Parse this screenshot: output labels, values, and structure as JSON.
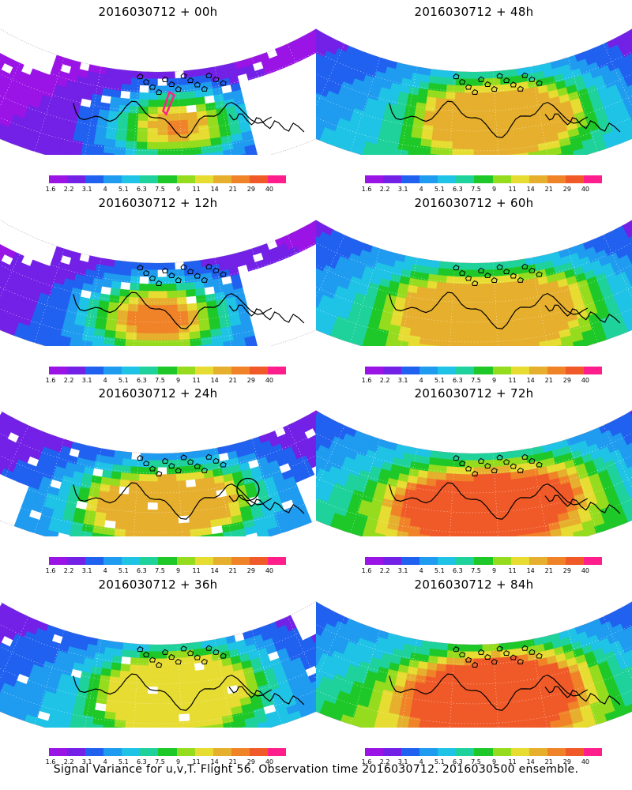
{
  "panels": [
    {
      "title": "2016030712 + 00h",
      "intensity": 0.15,
      "max_level": 0.95,
      "blobs": [
        [
          0.55,
          0.55,
          0.7
        ]
      ],
      "missing": "high",
      "marker": "diamond"
    },
    {
      "title": "2016030712 + 48h",
      "intensity": 0.55,
      "max_level": 0.7,
      "blobs": [
        [
          0.5,
          0.45,
          0.55
        ],
        [
          0.65,
          0.5,
          0.5
        ]
      ],
      "missing": "none"
    },
    {
      "title": "2016030712 + 12h",
      "intensity": 0.25,
      "max_level": 0.82,
      "blobs": [
        [
          0.5,
          0.55,
          0.75
        ]
      ],
      "missing": "high"
    },
    {
      "title": "2016030712 + 60h",
      "intensity": 0.65,
      "max_level": 0.75,
      "blobs": [
        [
          0.45,
          0.5,
          0.6
        ],
        [
          0.65,
          0.5,
          0.55
        ]
      ],
      "missing": "none"
    },
    {
      "title": "2016030712 + 24h",
      "intensity": 0.38,
      "max_level": 0.7,
      "blobs": [
        [
          0.45,
          0.55,
          0.6
        ],
        [
          0.6,
          0.5,
          0.55
        ]
      ],
      "missing": "medium",
      "marker": "circle"
    },
    {
      "title": "2016030712 + 72h",
      "intensity": 0.75,
      "max_level": 0.85,
      "blobs": [
        [
          0.45,
          0.55,
          0.7
        ],
        [
          0.65,
          0.5,
          0.6
        ]
      ],
      "missing": "none"
    },
    {
      "title": "2016030712 + 36h",
      "intensity": 0.48,
      "max_level": 0.68,
      "blobs": [
        [
          0.5,
          0.5,
          0.55
        ],
        [
          0.6,
          0.45,
          0.55
        ]
      ],
      "missing": "low"
    },
    {
      "title": "2016030712 + 84h",
      "intensity": 0.82,
      "max_level": 0.9,
      "blobs": [
        [
          0.5,
          0.55,
          0.8
        ],
        [
          0.62,
          0.5,
          0.7
        ]
      ],
      "missing": "none"
    }
  ],
  "colorbar": {
    "labels": [
      "1.6",
      "2.2",
      "3.1",
      "4",
      "5.1",
      "6.3",
      "7.5",
      "9",
      "11",
      "14",
      "21",
      "29",
      "40"
    ],
    "colors": [
      "#9b14e6",
      "#7321e6",
      "#2161f0",
      "#1f9bf0",
      "#1fc3e6",
      "#1fd29b",
      "#1ec828",
      "#96dc1e",
      "#e6dc32",
      "#e6af2d",
      "#f08228",
      "#f05a28",
      "#ff1e8c"
    ]
  },
  "background_color": "#9b14e6",
  "caption": "Signal Variance for u,v,T. Flight 56. Observation time 2016030712. 2016030500 ensemble."
}
